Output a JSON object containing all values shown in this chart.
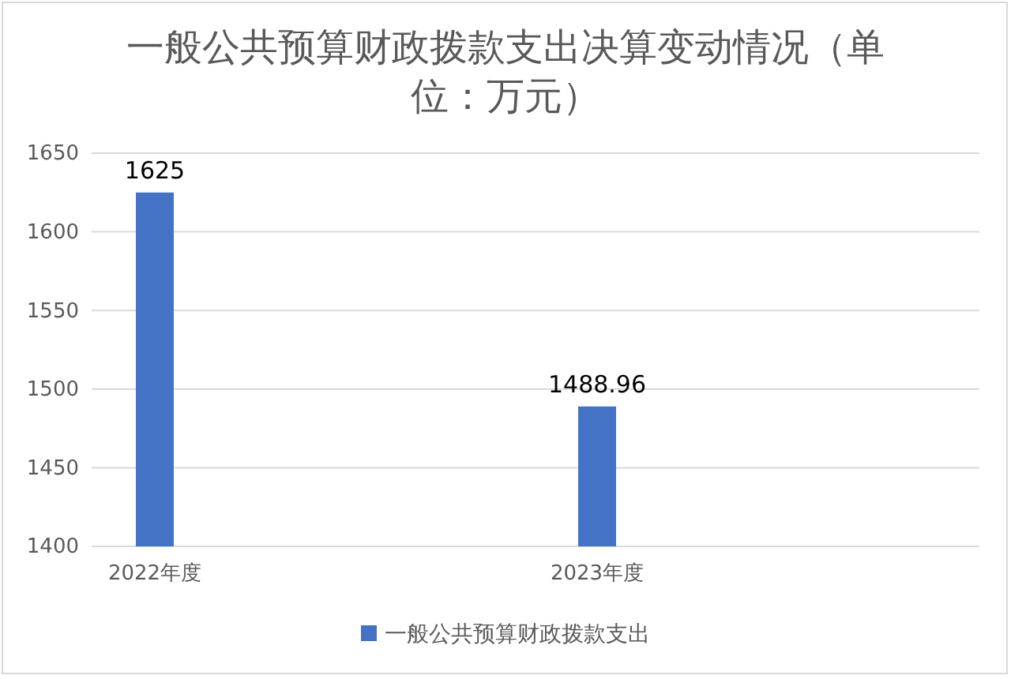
{
  "chart_data": {
    "type": "bar",
    "title": "一般公共预算财政拨款支出决算变动情况（单位：万元）",
    "categories": [
      "2022年度",
      "2023年度"
    ],
    "series": [
      {
        "name": "一般公共预算财政拨款支出",
        "color": "#4472c4",
        "values": [
          1625,
          1488.96
        ]
      }
    ],
    "ylim": [
      1400,
      1650
    ],
    "yticks": [
      1400,
      1450,
      1500,
      1550,
      1600,
      1650
    ],
    "grid": "y",
    "legend": "bottom",
    "data_labels": true
  }
}
